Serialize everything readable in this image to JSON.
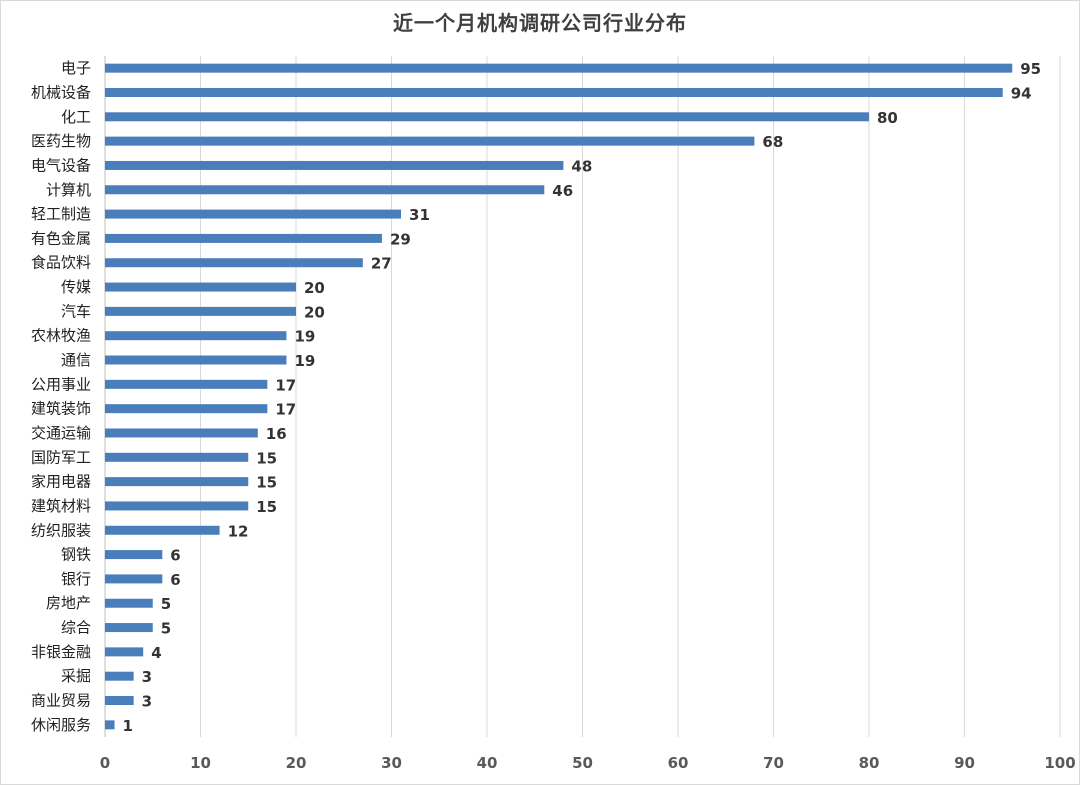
{
  "chart_data": {
    "type": "bar",
    "orientation": "horizontal",
    "title": "近一个月机构调研公司行业分布",
    "xlabel": "",
    "ylabel": "",
    "xlim": [
      0,
      100
    ],
    "x_ticks": [
      0,
      10,
      20,
      30,
      40,
      50,
      60,
      70,
      80,
      90,
      100
    ],
    "grid": true,
    "legend": "none",
    "bar_color": "#4a7ebb",
    "categories": [
      "电子",
      "机械设备",
      "化工",
      "医药生物",
      "电气设备",
      "计算机",
      "轻工制造",
      "有色金属",
      "食品饮料",
      "传媒",
      "汽车",
      "农林牧渔",
      "通信",
      "公用事业",
      "建筑装饰",
      "交通运输",
      "国防军工",
      "家用电器",
      "建筑材料",
      "纺织服装",
      "钢铁",
      "银行",
      "房地产",
      "综合",
      "非银金融",
      "采掘",
      "商业贸易",
      "休闲服务"
    ],
    "values": [
      95,
      94,
      80,
      68,
      48,
      46,
      31,
      29,
      27,
      20,
      20,
      19,
      19,
      17,
      17,
      16,
      15,
      15,
      15,
      12,
      6,
      6,
      5,
      5,
      4,
      3,
      3,
      1
    ]
  }
}
